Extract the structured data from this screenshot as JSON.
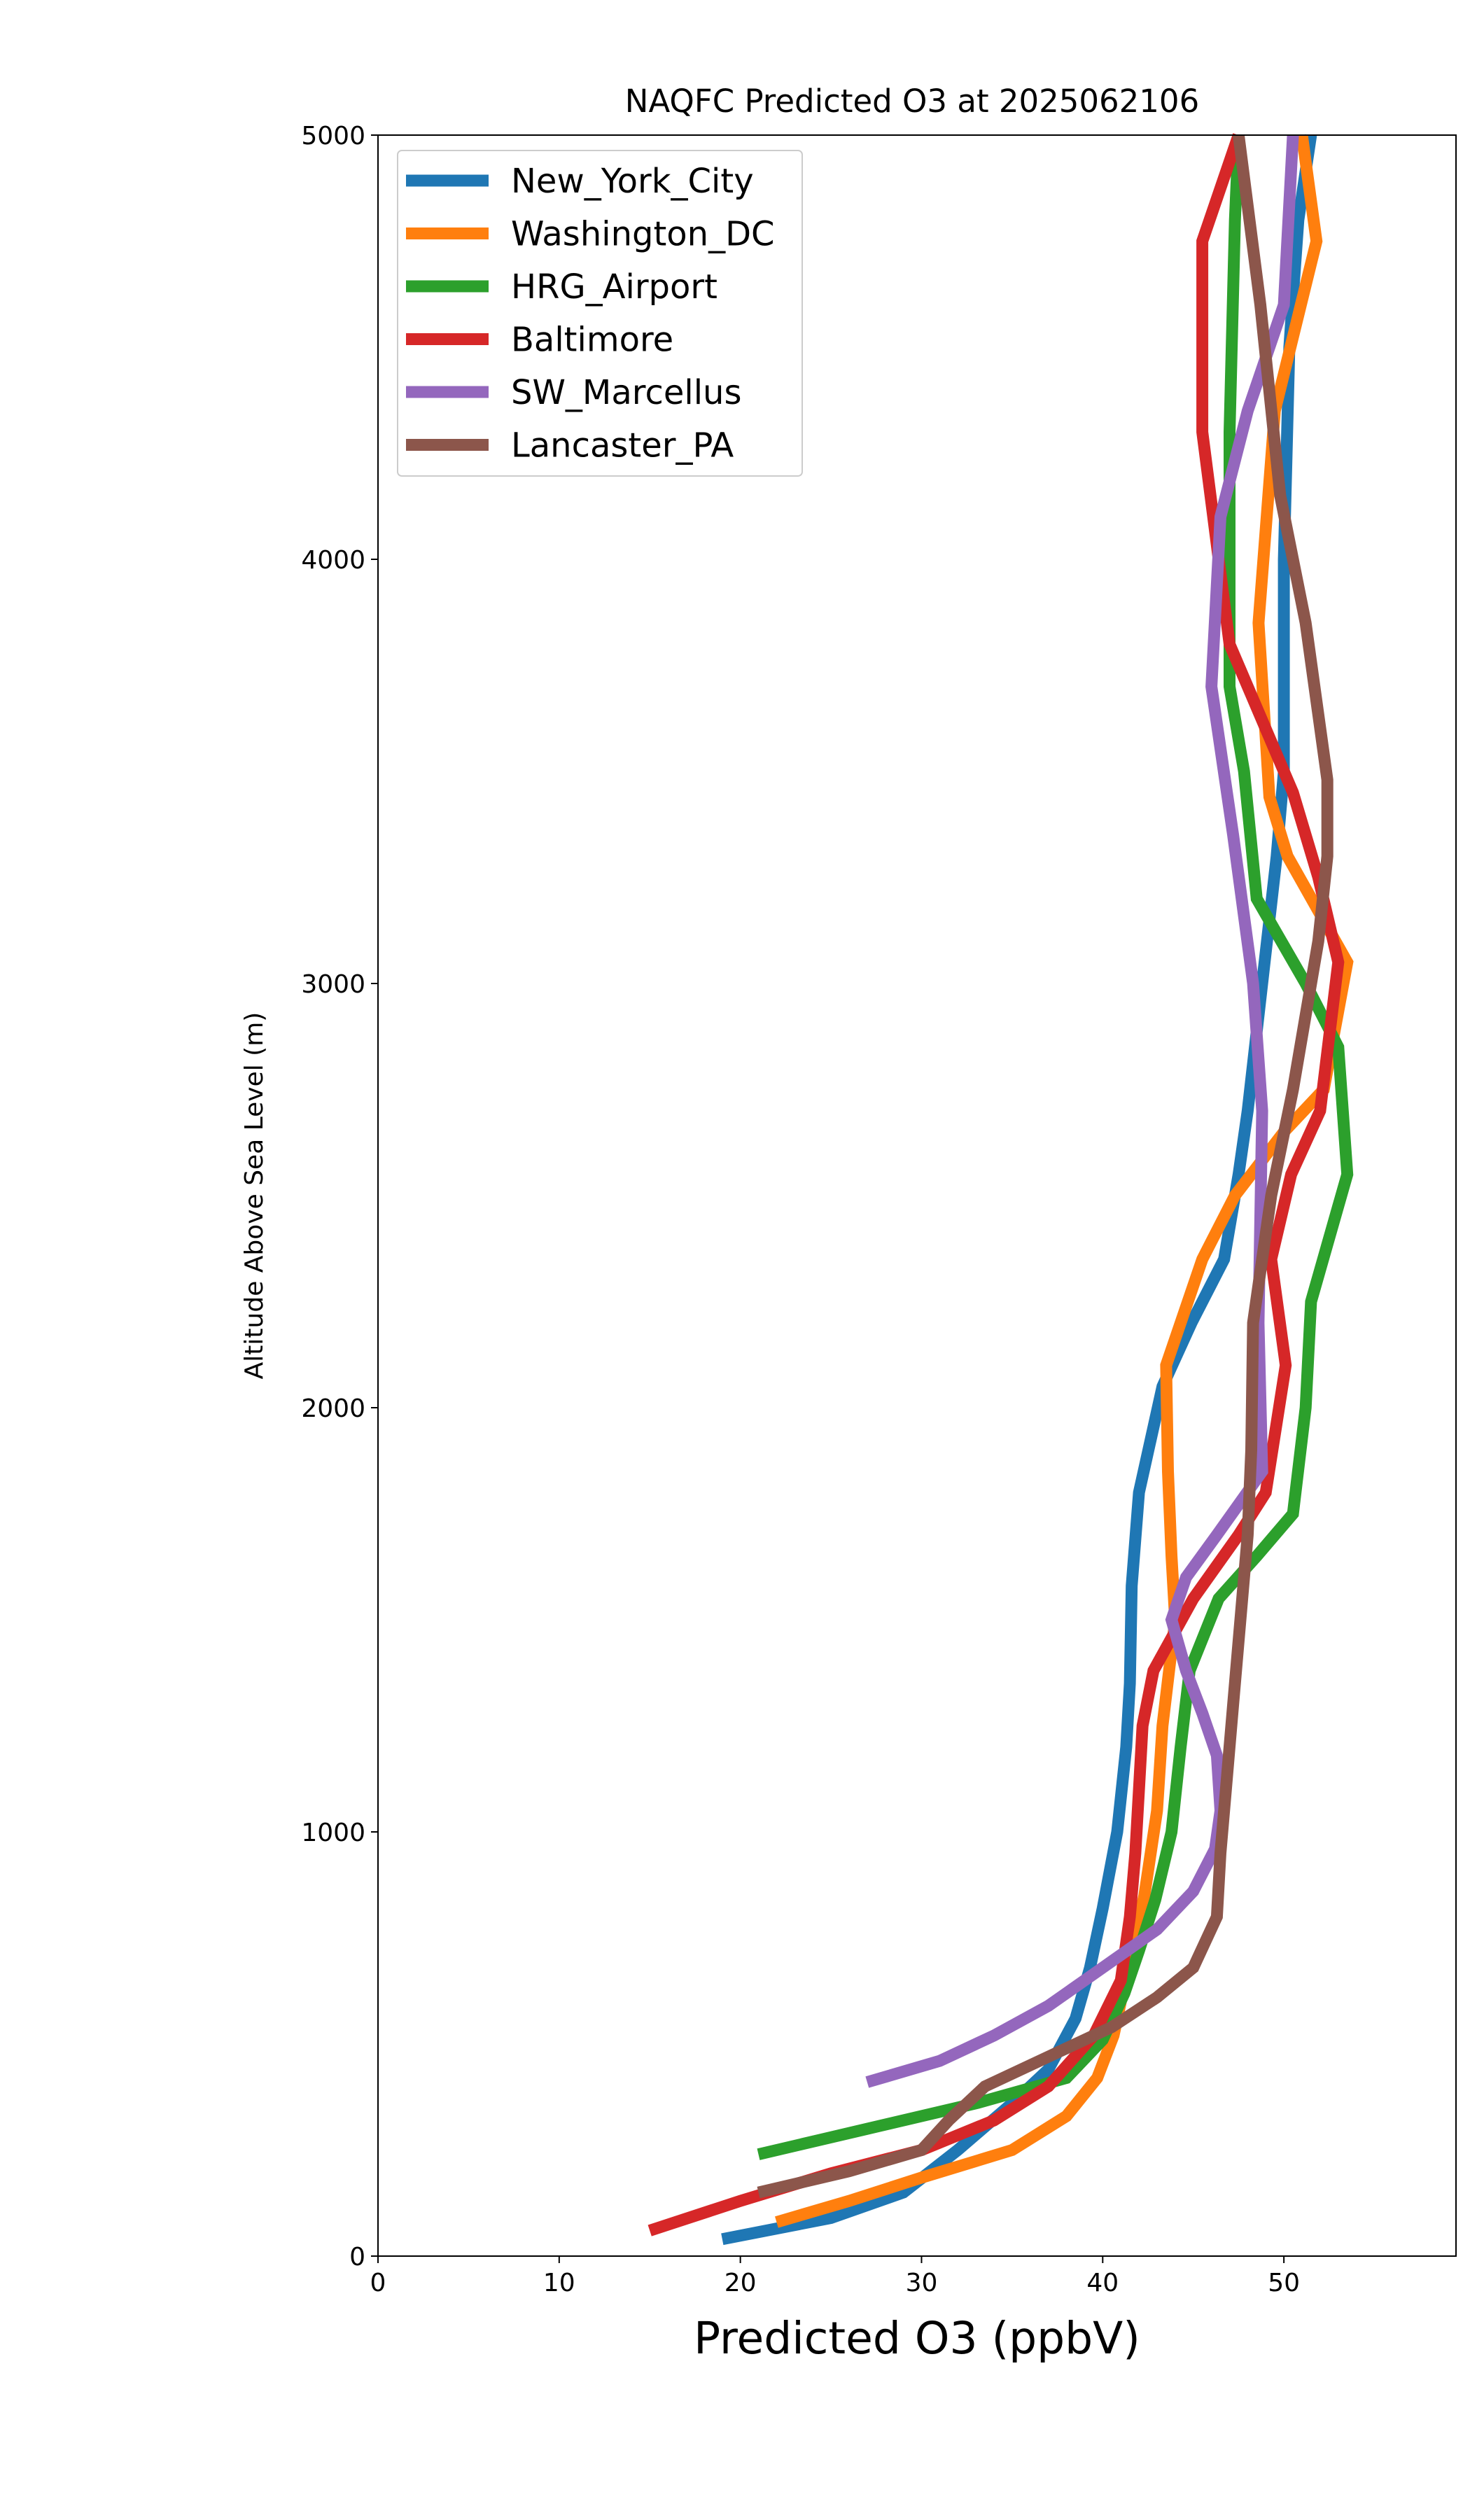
{
  "chart_data": {
    "type": "line",
    "title": "NAQFC Predicted O3 at 2025062106",
    "xlabel": "Predicted O3 (ppbV)",
    "ylabel": "Altitude Above Sea Level (m)",
    "xlim": [
      0,
      59.5
    ],
    "ylim": [
      0,
      5000
    ],
    "xticks": [
      "0",
      "10",
      "20",
      "30",
      "40",
      "50"
    ],
    "yticks": [
      "0",
      "1000",
      "2000",
      "3000",
      "4000",
      "5000"
    ],
    "legend_position": "upper-left",
    "grid": false,
    "series": [
      {
        "name": "New_York_City",
        "color": "#1f77b4",
        "points": [
          [
            19,
            40
          ],
          [
            25,
            90
          ],
          [
            29,
            150
          ],
          [
            32,
            250
          ],
          [
            35,
            360
          ],
          [
            37,
            440
          ],
          [
            38.5,
            560
          ],
          [
            39.3,
            680
          ],
          [
            40,
            820
          ],
          [
            40.8,
            1000
          ],
          [
            41.3,
            1200
          ],
          [
            41.5,
            1350
          ],
          [
            41.6,
            1580
          ],
          [
            42,
            1800
          ],
          [
            43.3,
            2050
          ],
          [
            44.9,
            2200
          ],
          [
            46.7,
            2350
          ],
          [
            47.5,
            2550
          ],
          [
            48,
            2700
          ],
          [
            48.8,
            3000
          ],
          [
            49.6,
            3300
          ],
          [
            50,
            3500
          ],
          [
            50,
            4000
          ],
          [
            50.3,
            4500
          ],
          [
            50.8,
            4800
          ],
          [
            51.5,
            5000
          ]
        ]
      },
      {
        "name": "Washington_DC",
        "color": "#ff7f0e",
        "points": [
          [
            22,
            80
          ],
          [
            26,
            130
          ],
          [
            30,
            185
          ],
          [
            35,
            250
          ],
          [
            38,
            330
          ],
          [
            39.7,
            420
          ],
          [
            40.6,
            520
          ],
          [
            41,
            600
          ],
          [
            41.6,
            720
          ],
          [
            42.3,
            850
          ],
          [
            43,
            1050
          ],
          [
            43.3,
            1250
          ],
          [
            44,
            1500
          ],
          [
            43.8,
            1650
          ],
          [
            43.6,
            1850
          ],
          [
            43.5,
            2100
          ],
          [
            45.5,
            2350
          ],
          [
            47.3,
            2500
          ],
          [
            50,
            2650
          ],
          [
            52.2,
            2750
          ],
          [
            53.5,
            3050
          ],
          [
            50.2,
            3300
          ],
          [
            49.2,
            3440
          ],
          [
            48.6,
            3850
          ],
          [
            49.5,
            4350
          ],
          [
            51.8,
            4750
          ],
          [
            51,
            5000
          ]
        ]
      },
      {
        "name": "HRG_Airport",
        "color": "#2ca02c",
        "points": [
          [
            21,
            240
          ],
          [
            27,
            300
          ],
          [
            33,
            360
          ],
          [
            38,
            420
          ],
          [
            40,
            510
          ],
          [
            41.2,
            620
          ],
          [
            42,
            720
          ],
          [
            42.9,
            840
          ],
          [
            43.8,
            1000
          ],
          [
            44.3,
            1200
          ],
          [
            44.8,
            1380
          ],
          [
            46.4,
            1550
          ],
          [
            48.5,
            1650
          ],
          [
            50.5,
            1750
          ],
          [
            51.2,
            2000
          ],
          [
            51.5,
            2250
          ],
          [
            53.5,
            2550
          ],
          [
            53,
            2850
          ],
          [
            51.2,
            3000
          ],
          [
            48.5,
            3200
          ],
          [
            47.8,
            3500
          ],
          [
            47,
            3700
          ],
          [
            47,
            4300
          ],
          [
            47.3,
            4800
          ],
          [
            47.5,
            5000
          ]
        ]
      },
      {
        "name": "Baltimore",
        "color": "#d62728",
        "points": [
          [
            15,
            60
          ],
          [
            20,
            130
          ],
          [
            25,
            195
          ],
          [
            30,
            250
          ],
          [
            34,
            320
          ],
          [
            37,
            400
          ],
          [
            39.5,
            520
          ],
          [
            41,
            650
          ],
          [
            41.5,
            800
          ],
          [
            41.8,
            950
          ],
          [
            42,
            1100
          ],
          [
            42.2,
            1250
          ],
          [
            42.8,
            1380
          ],
          [
            45,
            1550
          ],
          [
            47.5,
            1700
          ],
          [
            49,
            1800
          ],
          [
            50.1,
            2100
          ],
          [
            49.3,
            2350
          ],
          [
            50.4,
            2550
          ],
          [
            52,
            2700
          ],
          [
            53,
            3050
          ],
          [
            51.9,
            3250
          ],
          [
            50.5,
            3450
          ],
          [
            47,
            3800
          ],
          [
            45.5,
            4300
          ],
          [
            45.5,
            4750
          ],
          [
            47.5,
            5000
          ]
        ]
      },
      {
        "name": "SW_Marcellus",
        "color": "#9467bd",
        "points": [
          [
            27,
            410
          ],
          [
            31,
            460
          ],
          [
            34,
            520
          ],
          [
            37,
            590
          ],
          [
            40,
            680
          ],
          [
            43,
            770
          ],
          [
            45,
            860
          ],
          [
            46.2,
            960
          ],
          [
            46.5,
            1050
          ],
          [
            46.3,
            1180
          ],
          [
            45.5,
            1280
          ],
          [
            44.6,
            1380
          ],
          [
            43.8,
            1500
          ],
          [
            44.6,
            1600
          ],
          [
            46.3,
            1700
          ],
          [
            48.8,
            1850
          ],
          [
            48.6,
            2200
          ],
          [
            48.8,
            2700
          ],
          [
            48.3,
            3000
          ],
          [
            47.2,
            3350
          ],
          [
            46,
            3700
          ],
          [
            46.5,
            4100
          ],
          [
            48,
            4350
          ],
          [
            50,
            4600
          ],
          [
            50.5,
            5000
          ]
        ]
      },
      {
        "name": "Lancaster_PA",
        "color": "#8c564b",
        "points": [
          [
            21,
            150
          ],
          [
            26,
            200
          ],
          [
            30,
            250
          ],
          [
            31.5,
            320
          ],
          [
            33.5,
            400
          ],
          [
            37,
            470
          ],
          [
            40.5,
            540
          ],
          [
            43,
            610
          ],
          [
            45,
            680
          ],
          [
            46.3,
            800
          ],
          [
            46.5,
            950
          ],
          [
            46.8,
            1100
          ],
          [
            47.2,
            1300
          ],
          [
            47.6,
            1500
          ],
          [
            48,
            1700
          ],
          [
            48.2,
            1900
          ],
          [
            48.3,
            2200
          ],
          [
            49.3,
            2500
          ],
          [
            50.5,
            2750
          ],
          [
            51.9,
            3100
          ],
          [
            52.4,
            3300
          ],
          [
            52.4,
            3480
          ],
          [
            51.2,
            3850
          ],
          [
            49.8,
            4150
          ],
          [
            48.7,
            4600
          ],
          [
            47.5,
            5000
          ]
        ]
      }
    ]
  }
}
